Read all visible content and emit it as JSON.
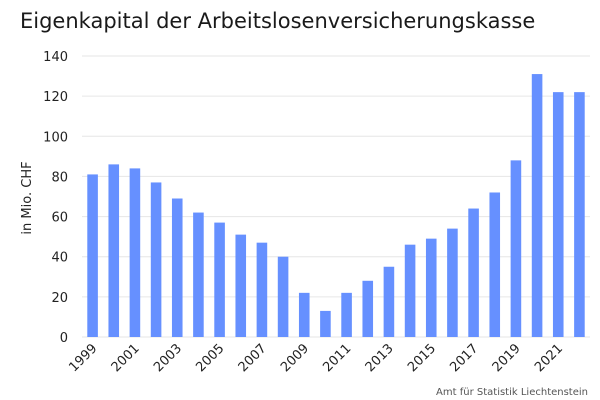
{
  "chart_data": {
    "type": "bar",
    "title": "Eigenkapital der Arbeitslosenversicherungskasse",
    "ylabel": "in Mio. CHF",
    "xlabel": "",
    "source": "Amt für Statistik Liechtenstein",
    "categories": [
      "1999",
      "2000",
      "2001",
      "2002",
      "2003",
      "2004",
      "2005",
      "2006",
      "2007",
      "2008",
      "2009",
      "2010",
      "2011",
      "2012",
      "2013",
      "2014",
      "2015",
      "2016",
      "2017",
      "2018",
      "2019",
      "2020",
      "2021",
      "2022"
    ],
    "x_tick_labels": [
      "1999",
      "2001",
      "2003",
      "2005",
      "2007",
      "2009",
      "2011",
      "2013",
      "2015",
      "2017",
      "2019",
      "2021"
    ],
    "values": [
      81,
      86,
      84,
      77,
      69,
      62,
      57,
      51,
      47,
      40,
      22,
      13,
      22,
      28,
      35,
      46,
      49,
      54,
      64,
      72,
      88,
      131,
      122,
      122
    ],
    "ylim": [
      0,
      140
    ],
    "yticks": [
      0,
      20,
      40,
      60,
      80,
      100,
      120,
      140
    ],
    "grid": true,
    "bar_color": "#6690ff"
  }
}
